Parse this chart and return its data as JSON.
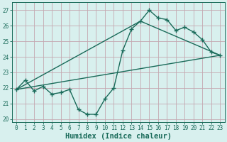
{
  "xlabel": "Humidex (Indice chaleur)",
  "xlim": [
    -0.5,
    23.5
  ],
  "ylim": [
    19.8,
    27.5
  ],
  "yticks": [
    20,
    21,
    22,
    23,
    24,
    25,
    26,
    27
  ],
  "xticks": [
    0,
    1,
    2,
    3,
    4,
    5,
    6,
    7,
    8,
    9,
    10,
    11,
    12,
    13,
    14,
    15,
    16,
    17,
    18,
    19,
    20,
    21,
    22,
    23
  ],
  "bg_color": "#d8f0ee",
  "grid_color": "#c4a8b0",
  "line_color": "#1a6b5a",
  "series1_x": [
    0,
    1,
    2,
    3,
    4,
    5,
    6,
    7,
    8,
    9,
    10,
    11,
    12,
    13,
    14,
    15,
    16,
    17,
    18,
    19,
    20,
    21,
    22,
    23
  ],
  "series1_y": [
    21.9,
    22.5,
    21.8,
    22.1,
    21.6,
    21.7,
    21.9,
    20.6,
    20.3,
    20.3,
    21.3,
    22.0,
    24.4,
    25.8,
    26.3,
    27.0,
    26.5,
    26.4,
    25.7,
    25.9,
    25.6,
    25.1,
    24.3,
    24.1
  ],
  "series2_x": [
    0,
    23
  ],
  "series2_y": [
    21.9,
    24.1
  ],
  "series3_x": [
    0,
    14,
    23
  ],
  "series3_y": [
    21.9,
    26.3,
    24.1
  ],
  "fontsize_label": 7.5,
  "fontsize_tick": 5.5
}
